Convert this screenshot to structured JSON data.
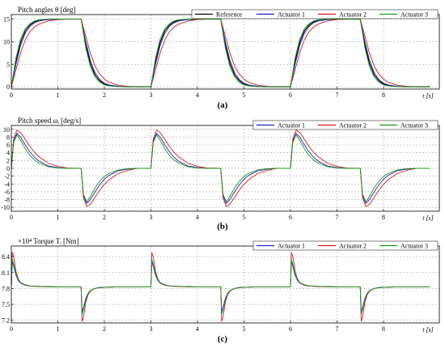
{
  "chart_data": [
    {
      "type": "line",
      "caption": "(a)",
      "title": "Pitch angles θ [deg]",
      "xlabel": "t [s]",
      "xlim": [
        0,
        9.2
      ],
      "ylim": [
        -0.5,
        16
      ],
      "xticks": [
        0,
        1,
        2,
        3,
        4,
        5,
        6,
        7,
        8
      ],
      "yticks": [
        0,
        5,
        10,
        15
      ],
      "legend": "top-right",
      "legend_cols": 4,
      "x": [
        0,
        0.1,
        0.2,
        0.3,
        0.4,
        0.5,
        0.6,
        0.8,
        1.0,
        1.2,
        1.5,
        1.6,
        1.7,
        1.8,
        1.9,
        2.0,
        2.1,
        2.3,
        2.5,
        2.7,
        3.0,
        3.1,
        3.2,
        3.3,
        3.4,
        3.5,
        3.6,
        3.8,
        4.0,
        4.2,
        4.5,
        4.6,
        4.7,
        4.8,
        4.9,
        5.0,
        5.1,
        5.3,
        5.5,
        5.7,
        6.0,
        6.1,
        6.2,
        6.3,
        6.4,
        6.5,
        6.6,
        6.8,
        7.0,
        7.2,
        7.5,
        7.6,
        7.7,
        7.8,
        7.9,
        8.0,
        8.1,
        8.3,
        8.5,
        8.7,
        9.0
      ],
      "series": [
        {
          "name": "Reference",
          "color": "#000000",
          "values": [
            0.0,
            5.7,
            9.9,
            12.4,
            13.7,
            14.4,
            14.7,
            14.95,
            15.0,
            15.0,
            15.0,
            9.3,
            5.1,
            2.6,
            1.3,
            0.6,
            0.3,
            0.05,
            0.0,
            0.0,
            0.0,
            5.7,
            9.9,
            12.4,
            13.7,
            14.4,
            14.7,
            14.95,
            15.0,
            15.0,
            15.0,
            9.3,
            5.1,
            2.6,
            1.3,
            0.6,
            0.3,
            0.05,
            0.0,
            0.0,
            0.0,
            5.7,
            9.9,
            12.4,
            13.7,
            14.4,
            14.7,
            14.95,
            15.0,
            15.0,
            15.0,
            9.3,
            5.1,
            2.6,
            1.3,
            0.6,
            0.3,
            0.05,
            0.0,
            0.0,
            0.0
          ]
        },
        {
          "name": "Actuator 1",
          "color": "#1f1fd0",
          "values": [
            0.0,
            5.0,
            9.2,
            11.9,
            13.4,
            14.2,
            14.6,
            14.9,
            15.0,
            15.0,
            15.0,
            10.0,
            5.8,
            3.1,
            1.6,
            0.8,
            0.4,
            0.1,
            0.0,
            0.0,
            0.0,
            5.0,
            9.2,
            11.9,
            13.4,
            14.2,
            14.6,
            14.9,
            15.0,
            15.0,
            15.0,
            10.0,
            5.8,
            3.1,
            1.6,
            0.8,
            0.4,
            0.1,
            0.0,
            0.0,
            0.0,
            5.0,
            9.2,
            11.9,
            13.4,
            14.2,
            14.6,
            14.9,
            15.0,
            15.0,
            15.0,
            10.0,
            5.8,
            3.1,
            1.6,
            0.8,
            0.4,
            0.1,
            0.0,
            0.0,
            0.0
          ]
        },
        {
          "name": "Actuator 2",
          "color": "#d41c1c",
          "values": [
            0.0,
            3.8,
            7.6,
            10.4,
            12.2,
            13.3,
            13.9,
            14.6,
            14.9,
            15.0,
            15.0,
            11.2,
            7.4,
            4.6,
            2.8,
            1.7,
            1.0,
            0.35,
            0.1,
            0.0,
            0.0,
            3.8,
            7.6,
            10.4,
            12.2,
            13.3,
            13.9,
            14.6,
            14.9,
            15.0,
            15.0,
            11.2,
            7.4,
            4.6,
            2.8,
            1.7,
            1.0,
            0.35,
            0.1,
            0.0,
            0.0,
            3.8,
            7.6,
            10.4,
            12.2,
            13.3,
            13.9,
            14.6,
            14.9,
            15.0,
            15.0,
            11.2,
            7.4,
            4.6,
            2.8,
            1.7,
            1.0,
            0.35,
            0.1,
            0.0,
            0.0
          ]
        },
        {
          "name": "Actuator 3",
          "color": "#1a9a1a",
          "values": [
            0.0,
            6.4,
            10.6,
            12.9,
            14.0,
            14.6,
            14.85,
            15.0,
            15.0,
            15.0,
            15.0,
            8.6,
            4.4,
            2.1,
            1.0,
            0.4,
            0.2,
            0.0,
            0.0,
            0.0,
            0.0,
            6.4,
            10.6,
            12.9,
            14.0,
            14.6,
            14.85,
            15.0,
            15.0,
            15.0,
            15.0,
            8.6,
            4.4,
            2.1,
            1.0,
            0.4,
            0.2,
            0.0,
            0.0,
            0.0,
            0.0,
            6.4,
            10.6,
            12.9,
            14.0,
            14.6,
            14.85,
            15.0,
            15.0,
            15.0,
            15.0,
            8.6,
            4.4,
            2.1,
            1.0,
            0.4,
            0.2,
            0.0,
            0.0,
            0.0,
            0.0
          ]
        }
      ]
    },
    {
      "type": "line",
      "caption": "(b)",
      "title": "Pitch speed ωᵢ [deg/s]",
      "xlabel": "t [s]",
      "xlim": [
        0,
        9.2
      ],
      "ylim": [
        -11,
        11
      ],
      "xticks": [
        0,
        1,
        2,
        3,
        4,
        5,
        6,
        7,
        8
      ],
      "yticks": [
        -10,
        -8,
        -6,
        -4,
        -2,
        0,
        2,
        4,
        6,
        8,
        10
      ],
      "legend": "top-right",
      "legend_cols": 3,
      "x": [
        0,
        0.05,
        0.12,
        0.2,
        0.3,
        0.4,
        0.5,
        0.6,
        0.8,
        1.0,
        1.2,
        1.5,
        1.55,
        1.62,
        1.7,
        1.8,
        1.9,
        2.0,
        2.1,
        2.3,
        2.5,
        2.7,
        3.0,
        3.05,
        3.12,
        3.2,
        3.3,
        3.4,
        3.5,
        3.6,
        3.8,
        4.0,
        4.2,
        4.5,
        4.55,
        4.62,
        4.7,
        4.8,
        4.9,
        5.0,
        5.1,
        5.3,
        5.5,
        5.7,
        6.0,
        6.05,
        6.12,
        6.2,
        6.3,
        6.4,
        6.5,
        6.6,
        6.8,
        7.0,
        7.2,
        7.5,
        7.55,
        7.62,
        7.7,
        7.8,
        7.9,
        8.0,
        8.1,
        8.3,
        8.5,
        8.7,
        9.0
      ],
      "series": [
        {
          "name": "Actuator 1",
          "color": "#1f1fd0",
          "values": [
            0,
            7.0,
            9.0,
            8.0,
            6.0,
            4.2,
            2.8,
            1.8,
            0.6,
            0.2,
            0,
            0,
            -7.0,
            -9.0,
            -8.0,
            -6.0,
            -4.2,
            -2.8,
            -1.8,
            -0.6,
            -0.2,
            0,
            0,
            7.0,
            9.0,
            8.0,
            6.0,
            4.2,
            2.8,
            1.8,
            0.6,
            0.2,
            0,
            0,
            -7.0,
            -9.0,
            -8.0,
            -6.0,
            -4.2,
            -2.8,
            -1.8,
            -0.6,
            -0.2,
            0,
            0,
            7.0,
            9.0,
            8.0,
            6.0,
            4.2,
            2.8,
            1.8,
            0.6,
            0.2,
            0,
            0,
            -7.0,
            -9.0,
            -8.0,
            -6.0,
            -4.2,
            -2.8,
            -1.8,
            -0.6,
            -0.2,
            0,
            0
          ]
        },
        {
          "name": "Actuator 2",
          "color": "#d41c1c",
          "values": [
            0,
            7.5,
            9.8,
            9.2,
            7.4,
            5.6,
            4.1,
            2.9,
            1.3,
            0.5,
            0.1,
            0,
            -7.5,
            -9.8,
            -9.2,
            -7.4,
            -5.6,
            -4.1,
            -2.9,
            -1.3,
            -0.5,
            0,
            0,
            7.5,
            9.8,
            9.2,
            7.4,
            5.6,
            4.1,
            2.9,
            1.3,
            0.5,
            0.1,
            0,
            -7.5,
            -9.8,
            -9.2,
            -7.4,
            -5.6,
            -4.1,
            -2.9,
            -1.3,
            -0.5,
            0,
            0,
            7.5,
            9.8,
            9.2,
            7.4,
            5.6,
            4.1,
            2.9,
            1.3,
            0.5,
            0.1,
            0,
            -7.5,
            -9.8,
            -9.2,
            -7.4,
            -5.6,
            -4.1,
            -2.9,
            -1.3,
            -0.5,
            0,
            0
          ]
        },
        {
          "name": "Actuator 3",
          "color": "#1a9a1a",
          "values": [
            0,
            6.6,
            8.6,
            7.2,
            5.0,
            3.3,
            2.1,
            1.3,
            0.4,
            0.1,
            0,
            0,
            -6.6,
            -8.6,
            -7.2,
            -5.0,
            -3.3,
            -2.1,
            -1.3,
            -0.4,
            -0.1,
            0,
            0,
            6.6,
            8.6,
            7.2,
            5.0,
            3.3,
            2.1,
            1.3,
            0.4,
            0.1,
            0,
            0,
            -6.6,
            -8.6,
            -7.2,
            -5.0,
            -3.3,
            -2.1,
            -1.3,
            -0.4,
            -0.1,
            0,
            0,
            6.6,
            8.6,
            7.2,
            5.0,
            3.3,
            2.1,
            1.3,
            0.4,
            0.1,
            0,
            0,
            -6.6,
            -8.6,
            -7.2,
            -5.0,
            -3.3,
            -2.1,
            -1.3,
            -0.4,
            -0.1,
            0,
            0
          ]
        }
      ]
    },
    {
      "type": "line",
      "caption": "(c)",
      "title": "Torque Tᵢ [Nm]",
      "multiplier": "×10⁴",
      "xlabel": "t [s]",
      "xlim": [
        0,
        9.2
      ],
      "ylim": [
        7.15,
        8.6
      ],
      "xticks": [
        0,
        1,
        2,
        3,
        4,
        5,
        6,
        7,
        8
      ],
      "yticks": [
        7.2,
        7.5,
        7.8,
        8.1,
        8.4
      ],
      "legend": "top-right",
      "legend_cols": 3,
      "x": [
        0,
        0.02,
        0.05,
        0.1,
        0.15,
        0.2,
        0.3,
        0.4,
        0.6,
        0.8,
        1.0,
        1.5,
        1.52,
        1.55,
        1.6,
        1.65,
        1.7,
        1.8,
        1.9,
        2.1,
        2.3,
        2.5,
        3.0,
        3.02,
        3.05,
        3.1,
        3.15,
        3.2,
        3.3,
        3.4,
        3.6,
        3.8,
        4.0,
        4.5,
        4.52,
        4.55,
        4.6,
        4.65,
        4.7,
        4.8,
        4.9,
        5.1,
        5.3,
        5.5,
        6.0,
        6.02,
        6.05,
        6.1,
        6.15,
        6.2,
        6.3,
        6.4,
        6.6,
        6.8,
        7.0,
        7.5,
        7.52,
        7.55,
        7.6,
        7.65,
        7.7,
        7.8,
        7.9,
        8.1,
        8.3,
        8.5,
        9.0
      ],
      "series": [
        {
          "name": "Actuator 1",
          "color": "#1f1fd0",
          "values": [
            7.83,
            8.3,
            8.22,
            8.05,
            7.95,
            7.9,
            7.86,
            7.845,
            7.84,
            7.835,
            7.83,
            7.83,
            7.36,
            7.44,
            7.61,
            7.71,
            7.76,
            7.8,
            7.82,
            7.825,
            7.83,
            7.83,
            7.83,
            8.3,
            8.22,
            8.05,
            7.95,
            7.9,
            7.86,
            7.845,
            7.84,
            7.835,
            7.83,
            7.83,
            7.36,
            7.44,
            7.61,
            7.71,
            7.76,
            7.8,
            7.82,
            7.825,
            7.83,
            7.83,
            7.83,
            8.3,
            8.22,
            8.05,
            7.95,
            7.9,
            7.86,
            7.845,
            7.84,
            7.835,
            7.83,
            7.83,
            7.36,
            7.44,
            7.61,
            7.71,
            7.76,
            7.8,
            7.82,
            7.825,
            7.83,
            7.83,
            7.83
          ]
        },
        {
          "name": "Actuator 2",
          "color": "#d41c1c",
          "values": [
            7.83,
            8.48,
            8.4,
            8.12,
            7.98,
            7.91,
            7.86,
            7.845,
            7.835,
            7.83,
            7.83,
            7.83,
            7.18,
            7.26,
            7.54,
            7.68,
            7.75,
            7.8,
            7.815,
            7.825,
            7.83,
            7.83,
            7.83,
            8.48,
            8.4,
            8.12,
            7.98,
            7.91,
            7.86,
            7.845,
            7.835,
            7.83,
            7.83,
            7.83,
            7.18,
            7.26,
            7.54,
            7.68,
            7.75,
            7.8,
            7.815,
            7.825,
            7.83,
            7.83,
            7.83,
            8.48,
            8.4,
            8.12,
            7.98,
            7.91,
            7.86,
            7.845,
            7.835,
            7.83,
            7.83,
            7.83,
            7.18,
            7.26,
            7.54,
            7.68,
            7.75,
            7.8,
            7.815,
            7.825,
            7.83,
            7.83,
            7.83
          ]
        },
        {
          "name": "Actuator 3",
          "color": "#1a9a1a",
          "values": [
            7.83,
            8.35,
            8.26,
            8.08,
            7.97,
            7.91,
            7.87,
            7.85,
            7.84,
            7.835,
            7.83,
            7.83,
            7.31,
            7.4,
            7.58,
            7.7,
            7.76,
            7.8,
            7.815,
            7.825,
            7.83,
            7.83,
            7.83,
            8.35,
            8.26,
            8.08,
            7.97,
            7.91,
            7.87,
            7.85,
            7.84,
            7.835,
            7.83,
            7.83,
            7.31,
            7.4,
            7.58,
            7.7,
            7.76,
            7.8,
            7.815,
            7.825,
            7.83,
            7.83,
            7.83,
            8.35,
            8.26,
            8.08,
            7.97,
            7.91,
            7.87,
            7.85,
            7.84,
            7.835,
            7.83,
            7.83,
            7.31,
            7.4,
            7.58,
            7.7,
            7.76,
            7.8,
            7.815,
            7.825,
            7.83,
            7.83,
            7.83
          ]
        }
      ]
    }
  ]
}
